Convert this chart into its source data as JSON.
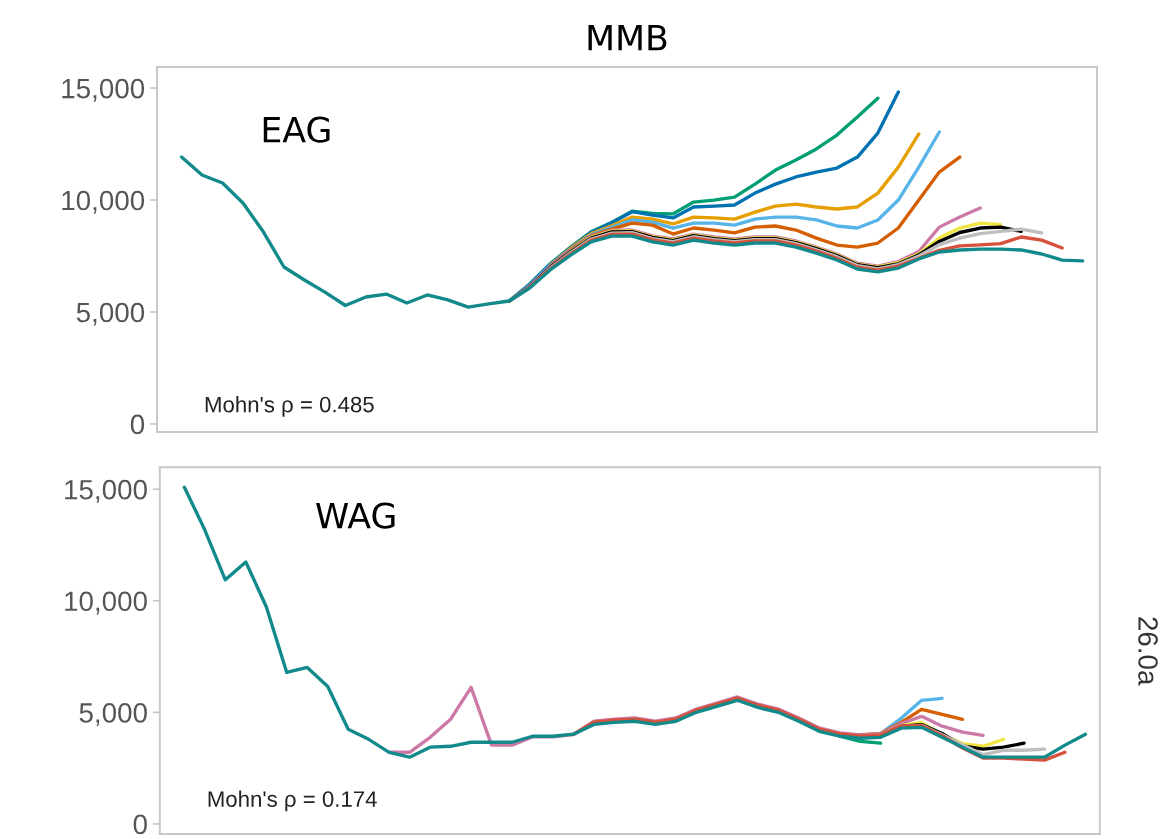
{
  "chart_data": [
    {
      "type": "line",
      "title": "MMB",
      "categories": [
        null,
        null,
        null,
        null,
        null,
        null,
        null,
        null,
        null,
        null,
        null,
        null,
        null,
        null,
        null,
        null,
        null,
        null,
        null,
        null,
        null,
        null,
        null,
        null,
        null,
        null,
        null,
        null,
        null,
        null,
        null,
        null,
        null,
        null,
        null,
        null,
        null,
        null,
        null,
        null,
        null,
        null,
        null,
        null,
        null
      ],
      "ylim": [
        -360,
        15940
      ],
      "yticks": [
        {
          "value": 0,
          "label": "0"
        },
        {
          "value": 5000,
          "label": "5,000"
        },
        {
          "value": 10000,
          "label": "10,000"
        },
        {
          "value": 15000,
          "label": "15,000"
        }
      ],
      "tick_labels": "y",
      "annotations": [
        "EAG",
        "Mohn's ρ = 0.485"
      ],
      "series": [
        {
          "color": "#009e73",
          "values": [
            null,
            null,
            null,
            null,
            null,
            null,
            null,
            null,
            null,
            null,
            null,
            null,
            null,
            null,
            null,
            null,
            5490,
            6250,
            7150,
            7900,
            8580,
            9000,
            9500,
            9400,
            9380,
            9910,
            10000,
            10130,
            10710,
            11340,
            11790,
            12280,
            12900,
            13710,
            14550,
            null,
            null,
            null,
            null,
            null,
            null,
            null,
            null,
            null,
            null
          ]
        },
        {
          "color": "#0072b2",
          "values": [
            null,
            null,
            null,
            null,
            null,
            null,
            null,
            null,
            null,
            null,
            null,
            null,
            null,
            null,
            null,
            null,
            5490,
            6240,
            7130,
            7880,
            8560,
            8980,
            9480,
            9330,
            9200,
            9690,
            9730,
            9780,
            10310,
            10710,
            11030,
            11250,
            11430,
            11920,
            12990,
            14820,
            null,
            null,
            null,
            null,
            null,
            null,
            null,
            null,
            null
          ]
        },
        {
          "color": "#e69f00",
          "values": [
            null,
            null,
            null,
            null,
            null,
            null,
            null,
            null,
            null,
            null,
            null,
            null,
            null,
            null,
            null,
            null,
            null,
            null,
            7100,
            7850,
            8500,
            8850,
            9240,
            9150,
            8930,
            9240,
            9200,
            9150,
            9460,
            9730,
            9820,
            9690,
            9600,
            9690,
            10310,
            11470,
            12950,
            null,
            null,
            null,
            null,
            null,
            null,
            null,
            null
          ]
        },
        {
          "color": "#56b4e9",
          "values": [
            null,
            null,
            null,
            null,
            null,
            null,
            null,
            null,
            null,
            null,
            null,
            null,
            null,
            null,
            null,
            null,
            5490,
            6200,
            7080,
            7810,
            8450,
            8780,
            9110,
            9010,
            8750,
            8970,
            8970,
            8880,
            9150,
            9240,
            9240,
            9110,
            8840,
            8750,
            9110,
            10000,
            11470,
            13040,
            null,
            null,
            null,
            null,
            null,
            null,
            null
          ]
        },
        {
          "color": "#d55e00",
          "values": [
            null,
            null,
            null,
            null,
            null,
            null,
            null,
            null,
            null,
            null,
            null,
            null,
            null,
            null,
            null,
            null,
            null,
            null,
            7050,
            7780,
            8400,
            8700,
            8970,
            8880,
            8480,
            8750,
            8660,
            8530,
            8790,
            8840,
            8660,
            8300,
            7990,
            7900,
            8080,
            8750,
            10000,
            11250,
            11920,
            null,
            null,
            null,
            null,
            null,
            null
          ]
        },
        {
          "color": "#cc79a7",
          "values": [
            null,
            null,
            null,
            null,
            null,
            null,
            null,
            null,
            null,
            null,
            null,
            null,
            null,
            null,
            null,
            null,
            5490,
            6160,
            7030,
            7750,
            8360,
            8650,
            8660,
            8400,
            8260,
            8480,
            8350,
            8260,
            8350,
            8350,
            8170,
            7900,
            7590,
            7180,
            7050,
            7250,
            7700,
            8790,
            9240,
            9640,
            null,
            null,
            null,
            null,
            null
          ]
        },
        {
          "color": "#f0e442",
          "values": [
            null,
            null,
            null,
            null,
            null,
            null,
            null,
            null,
            null,
            null,
            null,
            null,
            null,
            null,
            null,
            null,
            null,
            null,
            null,
            7720,
            8330,
            8610,
            8620,
            8360,
            8220,
            8440,
            8310,
            8220,
            8310,
            8310,
            8130,
            7860,
            7550,
            7140,
            7010,
            7200,
            7600,
            8300,
            8750,
            8970,
            8900,
            null,
            null,
            null,
            null
          ]
        },
        {
          "color": "#000000",
          "values": [
            null,
            null,
            null,
            null,
            null,
            null,
            null,
            null,
            null,
            null,
            null,
            null,
            null,
            null,
            null,
            null,
            5490,
            6140,
            6990,
            7690,
            8300,
            8580,
            8590,
            8330,
            8190,
            8410,
            8280,
            8190,
            8280,
            8280,
            8100,
            7830,
            7520,
            7110,
            6980,
            7150,
            7550,
            8150,
            8550,
            8750,
            8790,
            8600,
            null,
            null,
            null
          ]
        },
        {
          "color": "#bebebe",
          "values": [
            null,
            null,
            null,
            null,
            null,
            null,
            null,
            null,
            null,
            null,
            null,
            null,
            null,
            null,
            null,
            null,
            5490,
            6120,
            6960,
            7650,
            8260,
            8520,
            8540,
            8280,
            8140,
            8360,
            8230,
            8140,
            8230,
            8230,
            8050,
            7780,
            7470,
            7070,
            6930,
            7120,
            7500,
            8000,
            8300,
            8500,
            8600,
            8700,
            8530,
            null,
            null
          ]
        },
        {
          "color": "#d6503a",
          "values": [
            null,
            null,
            null,
            null,
            null,
            null,
            null,
            null,
            null,
            null,
            null,
            null,
            null,
            null,
            null,
            null,
            5490,
            6100,
            6920,
            7600,
            8200,
            8470,
            8480,
            8220,
            8080,
            8300,
            8170,
            8080,
            8170,
            8170,
            7990,
            7720,
            7400,
            7000,
            6870,
            7050,
            7400,
            7750,
            7950,
            8000,
            8050,
            8350,
            8210,
            7860,
            null
          ]
        },
        {
          "color": "#128a8c",
          "values": [
            11920,
            11120,
            10760,
            9870,
            8570,
            7010,
            6430,
            5890,
            5290,
            5670,
            5800,
            5400,
            5760,
            5540,
            5220,
            5360,
            5490,
            6070,
            6880,
            7540,
            8130,
            8390,
            8390,
            8130,
            7990,
            8210,
            8080,
            7990,
            8080,
            8080,
            7900,
            7630,
            7320,
            6920,
            6790,
            6960,
            7370,
            7680,
            7770,
            7810,
            7810,
            7770,
            7590,
            7320,
            7280
          ]
        }
      ]
    },
    {
      "type": "line",
      "categories": [
        null,
        null,
        null,
        null,
        null,
        null,
        null,
        null,
        null,
        null,
        null,
        null,
        null,
        null,
        null,
        null,
        null,
        null,
        null,
        null,
        null,
        null,
        null,
        null,
        null,
        null,
        null,
        null,
        null,
        null,
        null,
        null,
        null,
        null,
        null,
        null,
        null,
        null,
        null,
        null,
        null,
        null,
        null,
        null,
        null
      ],
      "ylim": [
        -450,
        15980
      ],
      "yticks": [
        {
          "value": 0,
          "label": "0"
        },
        {
          "value": 5000,
          "label": "5,000"
        },
        {
          "value": 10000,
          "label": "10,000"
        },
        {
          "value": 15000,
          "label": "15,000"
        }
      ],
      "tick_labels": "y",
      "annotations": [
        "WAG",
        "Mohn's ρ = 0.174",
        "26.0a"
      ],
      "series": [
        {
          "color": "#009e73",
          "values": [
            null,
            null,
            null,
            null,
            null,
            null,
            null,
            null,
            null,
            null,
            null,
            null,
            null,
            null,
            null,
            null,
            null,
            null,
            null,
            null,
            null,
            null,
            null,
            null,
            null,
            null,
            null,
            null,
            null,
            null,
            null,
            null,
            3930,
            3700,
            3620,
            null,
            null,
            null,
            null,
            null,
            null,
            null,
            null,
            null,
            null
          ]
        },
        {
          "color": "#56b4e9",
          "values": [
            null,
            null,
            null,
            null,
            null,
            null,
            null,
            null,
            null,
            null,
            null,
            null,
            null,
            null,
            null,
            null,
            null,
            null,
            null,
            null,
            null,
            null,
            null,
            null,
            null,
            null,
            null,
            null,
            null,
            null,
            null,
            null,
            null,
            3940,
            4050,
            4730,
            5540,
            5630,
            null,
            null,
            null,
            null,
            null,
            null,
            null
          ]
        },
        {
          "color": "#d55e00",
          "values": [
            null,
            null,
            null,
            null,
            null,
            null,
            null,
            null,
            null,
            null,
            null,
            null,
            null,
            null,
            null,
            null,
            null,
            null,
            null,
            null,
            null,
            null,
            null,
            null,
            null,
            null,
            null,
            null,
            null,
            null,
            null,
            null,
            null,
            4000,
            4050,
            4550,
            5130,
            4910,
            4690,
            null,
            null,
            null,
            null,
            null,
            null
          ]
        },
        {
          "color": "#cc79a7",
          "values": [
            null,
            null,
            null,
            null,
            null,
            null,
            null,
            null,
            null,
            null,
            3210,
            3210,
            3880,
            4690,
            6120,
            3530,
            3530,
            3900,
            3900,
            4000,
            4610,
            4700,
            4750,
            4610,
            4750,
            5150,
            5420,
            5690,
            5370,
            5150,
            4750,
            4300,
            4080,
            3990,
            4030,
            4500,
            4820,
            4380,
            4110,
            3970,
            null,
            null,
            null,
            null,
            null
          ]
        },
        {
          "color": "#f0e442",
          "values": [
            null,
            null,
            null,
            null,
            null,
            null,
            null,
            null,
            null,
            null,
            null,
            null,
            null,
            null,
            null,
            null,
            null,
            null,
            null,
            null,
            null,
            null,
            null,
            null,
            null,
            null,
            null,
            null,
            null,
            null,
            null,
            null,
            null,
            null,
            3970,
            4400,
            4550,
            4000,
            3600,
            3480,
            3790,
            null,
            null,
            null,
            null
          ]
        },
        {
          "color": "#000000",
          "values": [
            null,
            null,
            null,
            null,
            null,
            null,
            null,
            null,
            null,
            null,
            null,
            null,
            null,
            null,
            null,
            null,
            null,
            null,
            null,
            null,
            null,
            null,
            null,
            null,
            null,
            null,
            null,
            null,
            null,
            null,
            null,
            null,
            null,
            null,
            3960,
            4380,
            4450,
            4050,
            3500,
            3350,
            3440,
            3620,
            null,
            null,
            null
          ]
        },
        {
          "color": "#bebebe",
          "values": [
            null,
            null,
            null,
            null,
            null,
            null,
            null,
            null,
            null,
            null,
            null,
            null,
            null,
            null,
            null,
            null,
            null,
            null,
            null,
            null,
            null,
            null,
            null,
            null,
            null,
            null,
            null,
            null,
            null,
            null,
            null,
            null,
            null,
            null,
            3960,
            4370,
            4420,
            4000,
            3550,
            3100,
            3300,
            3300,
            3350,
            null,
            null
          ]
        },
        {
          "color": "#d6503a",
          "values": [
            null,
            null,
            null,
            null,
            null,
            null,
            null,
            null,
            null,
            null,
            null,
            null,
            null,
            null,
            null,
            null,
            null,
            null,
            null,
            4020,
            4560,
            4650,
            4700,
            4560,
            4700,
            5100,
            5370,
            5640,
            5320,
            5100,
            4700,
            4250,
            4030,
            3940,
            3980,
            4390,
            4400,
            3950,
            3400,
            2950,
            2950,
            2900,
            2860,
            3210,
            null
          ]
        },
        {
          "color": "#128a8c",
          "values": [
            15090,
            13170,
            10940,
            11740,
            9730,
            6790,
            7010,
            6160,
            4240,
            3790,
            3210,
            2990,
            3440,
            3480,
            3660,
            3660,
            3660,
            3930,
            3930,
            4020,
            4460,
            4550,
            4600,
            4460,
            4600,
            5000,
            5270,
            5540,
            5220,
            5000,
            4600,
            4150,
            3930,
            3840,
            3880,
            4290,
            4330,
            3880,
            3440,
            2990,
            2990,
            2990,
            2990,
            3530,
            4020
          ]
        }
      ]
    }
  ]
}
